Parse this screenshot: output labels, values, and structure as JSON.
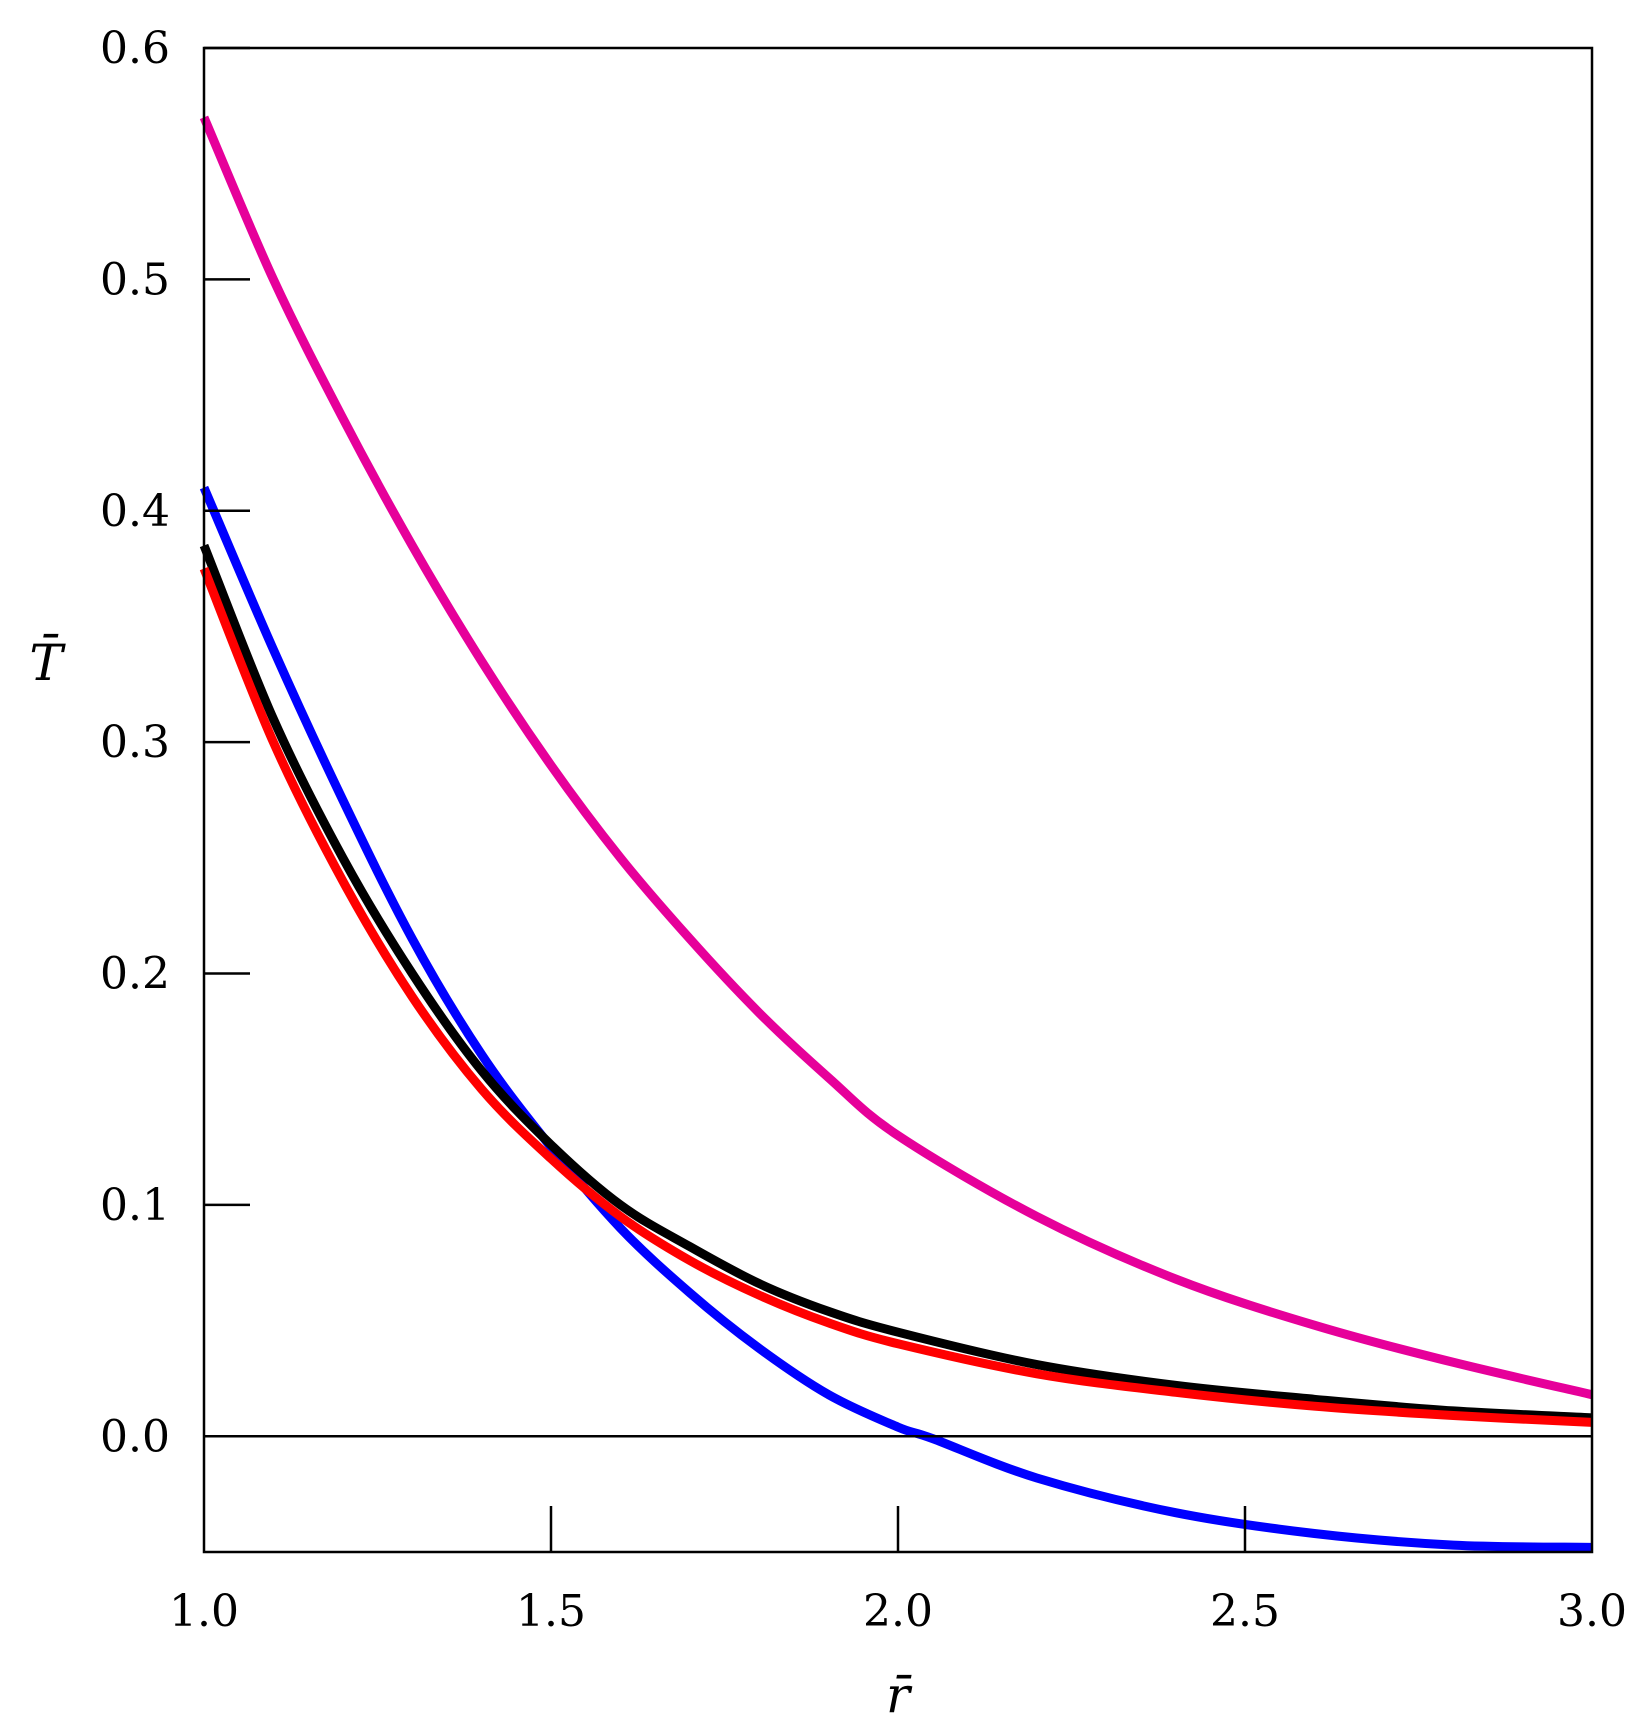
{
  "chart_data": {
    "type": "line",
    "title": "",
    "xlabel": "r̄",
    "ylabel": "T̄",
    "xlim": [
      1.0,
      3.0
    ],
    "ylim": [
      -0.05,
      0.6
    ],
    "xticks": [
      1.0,
      1.5,
      2.0,
      2.5,
      3.0
    ],
    "yticks": [
      0.0,
      0.1,
      0.2,
      0.3,
      0.4,
      0.5,
      0.6
    ],
    "xtick_labels": [
      "1.0",
      "1.5",
      "2.0",
      "2.5",
      "3.0"
    ],
    "ytick_labels": [
      "0.0",
      "0.1",
      "0.2",
      "0.3",
      "0.4",
      "0.5",
      "0.6"
    ],
    "zero_line": true,
    "grid": false,
    "legend": "none",
    "series": [
      {
        "color": "#e6009a",
        "x": [
          1.0,
          1.1,
          1.2,
          1.3,
          1.4,
          1.5,
          1.6,
          1.7,
          1.8,
          1.9,
          2.0,
          2.2,
          2.4,
          2.6,
          2.8,
          3.0
        ],
        "y": [
          0.57,
          0.5,
          0.44,
          0.385,
          0.335,
          0.29,
          0.25,
          0.215,
          0.183,
          0.155,
          0.13,
          0.095,
          0.068,
          0.048,
          0.032,
          0.018
        ]
      },
      {
        "color": "#0000ff",
        "x": [
          1.0,
          1.1,
          1.2,
          1.3,
          1.4,
          1.5,
          1.6,
          1.7,
          1.8,
          1.9,
          2.0,
          2.05,
          2.2,
          2.4,
          2.6,
          2.8,
          3.0
        ],
        "y": [
          0.41,
          0.34,
          0.275,
          0.215,
          0.165,
          0.125,
          0.09,
          0.062,
          0.038,
          0.018,
          0.004,
          -0.001,
          -0.018,
          -0.033,
          -0.042,
          -0.047,
          -0.048
        ]
      },
      {
        "color": "#000000",
        "x": [
          1.0,
          1.1,
          1.2,
          1.3,
          1.4,
          1.5,
          1.6,
          1.7,
          1.8,
          1.9,
          2.0,
          2.2,
          2.4,
          2.6,
          2.8,
          3.0
        ],
        "y": [
          0.385,
          0.31,
          0.25,
          0.2,
          0.158,
          0.126,
          0.1,
          0.082,
          0.066,
          0.054,
          0.045,
          0.031,
          0.022,
          0.016,
          0.011,
          0.008
        ]
      },
      {
        "color": "#ff0000",
        "x": [
          1.0,
          1.1,
          1.2,
          1.3,
          1.4,
          1.5,
          1.6,
          1.7,
          1.8,
          1.9,
          2.0,
          2.2,
          2.4,
          2.6,
          2.8,
          3.0
        ],
        "y": [
          0.375,
          0.3,
          0.24,
          0.19,
          0.15,
          0.12,
          0.095,
          0.076,
          0.061,
          0.049,
          0.04,
          0.027,
          0.019,
          0.013,
          0.009,
          0.006
        ]
      }
    ]
  }
}
